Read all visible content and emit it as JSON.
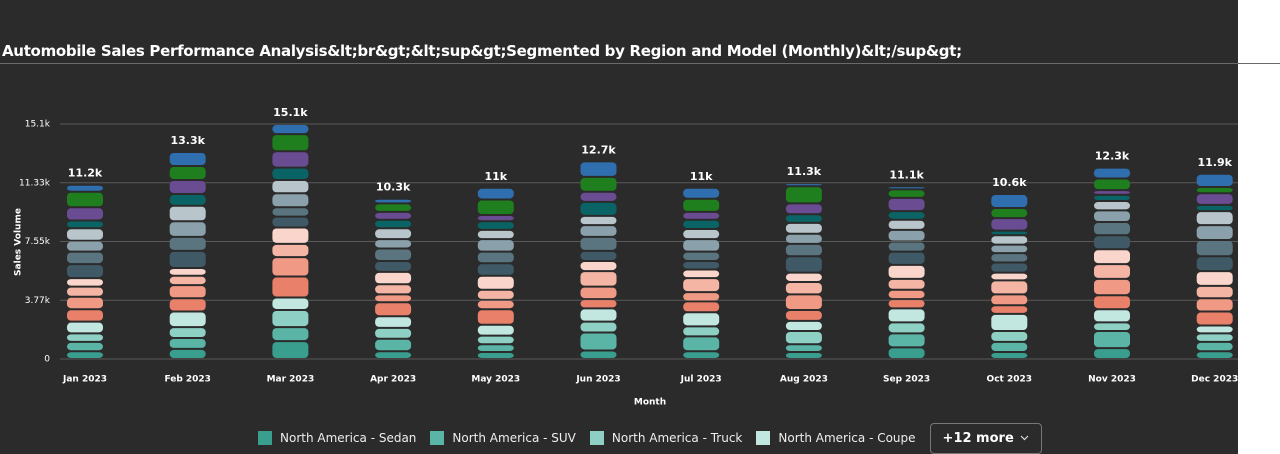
{
  "chart_data": {
    "type": "stacked-bar",
    "title": "Automobile Sales Performance Analysis&lt;br&gt;&lt;sup&gt;Segmented by Region and Model (Monthly)&lt;/sup&gt;",
    "x_label": "Month",
    "y_label": "Sales Volume",
    "categories": [
      "Jan 2023",
      "Feb 2023",
      "Mar 2023",
      "Apr 2023",
      "May 2023",
      "Jun 2023",
      "Jul 2023",
      "Aug 2023",
      "Sep 2023",
      "Oct 2023",
      "Nov 2023",
      "Dec 2023"
    ],
    "totals": [
      11200,
      13300,
      15100,
      10300,
      11000,
      12700,
      11000,
      11300,
      11100,
      10600,
      12300,
      11900
    ],
    "total_labels": [
      "11.2k",
      "13.3k",
      "15.1k",
      "10.3k",
      "11k",
      "12.7k",
      "11k",
      "11.3k",
      "11.1k",
      "10.6k",
      "12.3k",
      "11.9k"
    ],
    "ylim": [
      0,
      15100
    ],
    "yticks": [
      0,
      {
        "value": 3775,
        "label": "3.77k"
      },
      {
        "value": 7550,
        "label": "7.55k"
      },
      {
        "value": 11325,
        "label": "11.33k"
      },
      {
        "value": 15100,
        "label": "15.1k"
      }
    ],
    "grid": true,
    "legend_more": "+12 more",
    "series": [
      {
        "name": "North America - Sedan",
        "color": "#3a9e8f",
        "values": [
          500,
          650,
          1150,
          500,
          450,
          550,
          500,
          450,
          750,
          450,
          700,
          500
        ]
      },
      {
        "name": "North America - SUV",
        "color": "#5bb5a6",
        "values": [
          600,
          700,
          900,
          800,
          500,
          1150,
          950,
          500,
          900,
          650,
          1100,
          600
        ]
      },
      {
        "name": "North America - Truck",
        "color": "#8fd0c5",
        "values": [
          550,
          700,
          1100,
          700,
          550,
          700,
          650,
          850,
          700,
          700,
          550,
          550
        ]
      },
      {
        "name": "North America - Coupe",
        "color": "#c2e6e0",
        "values": [
          750,
          1000,
          800,
          750,
          700,
          850,
          900,
          650,
          900,
          1100,
          850,
          500
        ]
      },
      {
        "color": "#e8806a",
        "values": [
          800,
          850,
          1350,
          900,
          1000,
          600,
          700,
          700,
          600,
          550,
          900,
          900
        ]
      },
      {
        "color": "#f09a85",
        "values": [
          800,
          850,
          1250,
          500,
          600,
          800,
          600,
          1000,
          600,
          700,
          1050,
          850
        ]
      },
      {
        "color": "#f4b5a5",
        "values": [
          650,
          600,
          850,
          650,
          650,
          1000,
          900,
          800,
          700,
          900,
          950,
          800
        ]
      },
      {
        "color": "#f9d5cb",
        "values": [
          550,
          500,
          1050,
          800,
          900,
          650,
          550,
          600,
          900,
          500,
          950,
          950
        ]
      },
      {
        "color": "#3f5a66",
        "values": [
          900,
          1100,
          700,
          700,
          800,
          650,
          550,
          1050,
          850,
          650,
          900,
          950
        ]
      },
      {
        "color": "#5a7580",
        "values": [
          800,
          900,
          600,
          800,
          750,
          900,
          600,
          800,
          650,
          600,
          850,
          1050
        ]
      },
      {
        "color": "#8aa0aa",
        "values": [
          700,
          1000,
          900,
          600,
          800,
          750,
          800,
          650,
          750,
          550,
          750,
          950
        ]
      },
      {
        "color": "#b8c6cc",
        "values": [
          800,
          1000,
          850,
          700,
          600,
          600,
          650,
          700,
          650,
          600,
          600,
          900
        ]
      },
      {
        "color": "#0a6466",
        "values": [
          500,
          750,
          800,
          550,
          550,
          900,
          600,
          550,
          550,
          300,
          400,
          400
        ]
      },
      {
        "color": "#6a4c93",
        "values": [
          850,
          900,
          1050,
          500,
          400,
          650,
          500,
          700,
          850,
          800,
          300,
          750
        ]
      },
      {
        "color": "#1f7f1f",
        "values": [
          1000,
          900,
          1100,
          550,
          1000,
          950,
          850,
          1100,
          550,
          650,
          750,
          400
        ]
      },
      {
        "color": "#2f6faf",
        "values": [
          450,
          900,
          650,
          300,
          750,
          1000,
          700,
          200,
          200,
          900,
          700,
          850
        ]
      }
    ]
  }
}
